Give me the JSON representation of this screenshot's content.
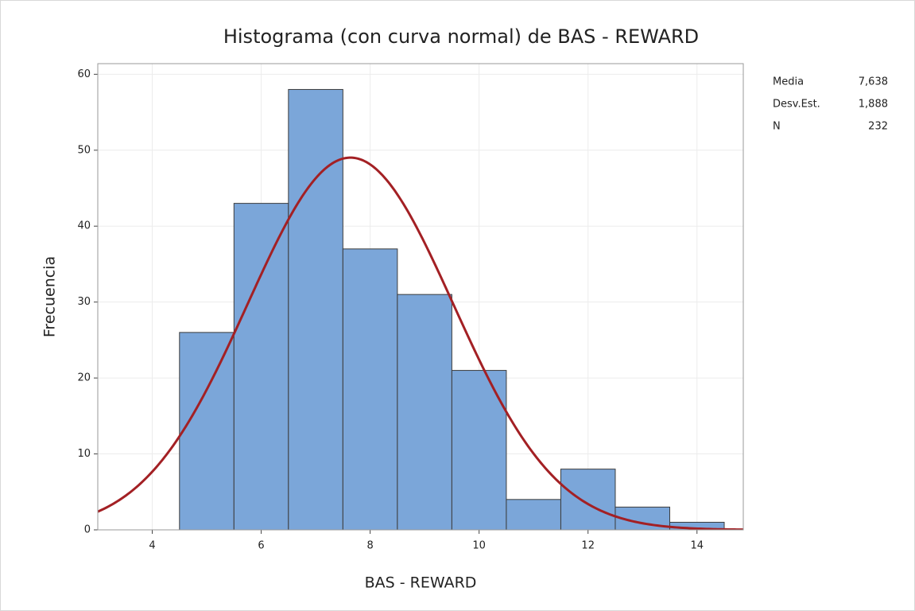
{
  "chart_data": {
    "type": "histogram",
    "title": "Histograma (con curva normal) de BAS - REWARD",
    "x_label": "BAS - REWARD",
    "y_label": "Frecuencia",
    "bins": [
      4.5,
      5.5,
      6.5,
      7.5,
      8.5,
      9.5,
      10.5,
      11.5,
      12.5,
      13.5,
      14.5
    ],
    "values": [
      26,
      43,
      58,
      37,
      31,
      21,
      4,
      8,
      3,
      1
    ],
    "color": "#7ba6d9",
    "curve_color": "#a32024",
    "xlim": [
      3,
      14.85
    ],
    "xticks": [
      4,
      6,
      8,
      10,
      12,
      14
    ],
    "ylim": [
      0,
      61.4
    ],
    "yticks": [
      0,
      10,
      20,
      30,
      40,
      50,
      60
    ],
    "grid": true,
    "stats": [
      {
        "name": "Media",
        "value": 7.638,
        "label": "7,638"
      },
      {
        "name": "Desv.Est.",
        "value": 1.888,
        "label": "1,888"
      },
      {
        "name": "N",
        "value": 232
      }
    ]
  }
}
